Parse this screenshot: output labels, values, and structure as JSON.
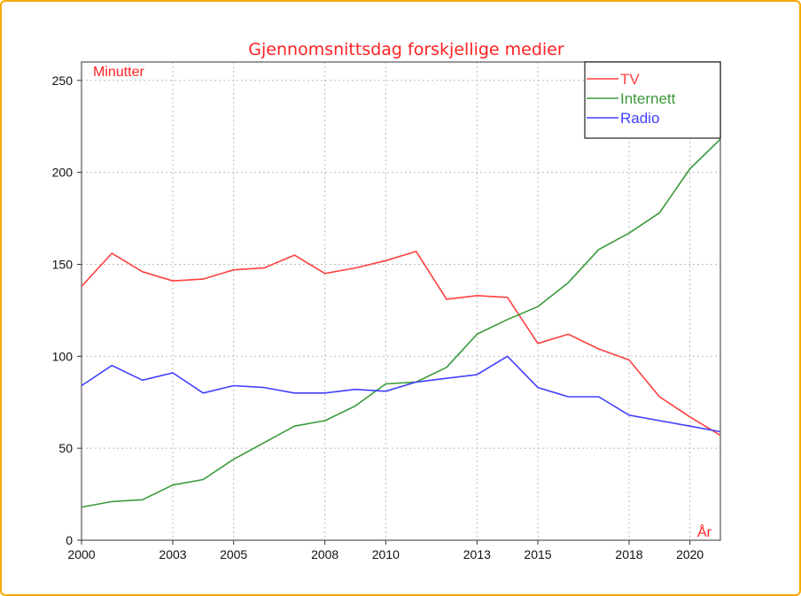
{
  "chart_data": {
    "type": "line",
    "title": "Gjennomsnittsdag forskjellige medier",
    "xlabel": "År",
    "ylabel": "Minutter",
    "xlim": [
      2000,
      2021
    ],
    "ylim": [
      0,
      260
    ],
    "x_ticks": [
      2000,
      2003,
      2005,
      2008,
      2010,
      2013,
      2015,
      2018,
      2020
    ],
    "y_ticks": [
      0,
      50,
      100,
      150,
      200,
      250
    ],
    "grid": true,
    "legend": "top-right",
    "title_color": "#ff2222",
    "x": [
      2000,
      2001,
      2002,
      2003,
      2004,
      2005,
      2006,
      2007,
      2008,
      2009,
      2010,
      2011,
      2012,
      2013,
      2014,
      2015,
      2016,
      2017,
      2018,
      2019,
      2020,
      2021
    ],
    "series": [
      {
        "name": "TV",
        "color": "#ff4040",
        "values": [
          138,
          156,
          146,
          141,
          142,
          147,
          148,
          155,
          145,
          148,
          152,
          157,
          131,
          133,
          132,
          107,
          112,
          104,
          98,
          78,
          67,
          57
        ]
      },
      {
        "name": "Internett",
        "color": "#3a9a3a",
        "values": [
          18,
          21,
          22,
          30,
          33,
          44,
          53,
          62,
          65,
          73,
          85,
          86,
          94,
          112,
          120,
          127,
          140,
          158,
          167,
          178,
          202,
          218
        ]
      },
      {
        "name": "Radio",
        "color": "#4040ff",
        "values": [
          84,
          95,
          87,
          91,
          80,
          84,
          83,
          80,
          80,
          82,
          81,
          86,
          88,
          90,
          100,
          83,
          78,
          78,
          68,
          65,
          62,
          59
        ]
      }
    ]
  }
}
